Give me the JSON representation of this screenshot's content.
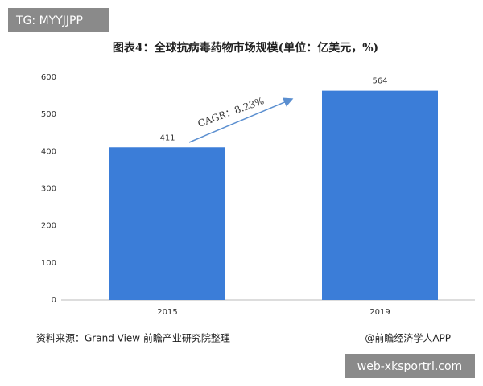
{
  "overlay": {
    "top_left": "TG: MYYJJPP",
    "bottom_right": "web-xksportrl.com"
  },
  "chart_data": {
    "type": "bar",
    "title": "图表4：全球抗病毒药物市场规模(单位：亿美元，%)",
    "categories": [
      "2015",
      "2019"
    ],
    "values": [
      411,
      564
    ],
    "color": "#3b7dd8",
    "ylim": [
      0,
      600
    ],
    "yticks": [
      0,
      100,
      200,
      300,
      400,
      500,
      600
    ],
    "annotation": "CAGR：8.23%",
    "source": "资料来源：Grand View 前瞻产业研究院整理",
    "credit": "@前瞻经济学人APP"
  }
}
